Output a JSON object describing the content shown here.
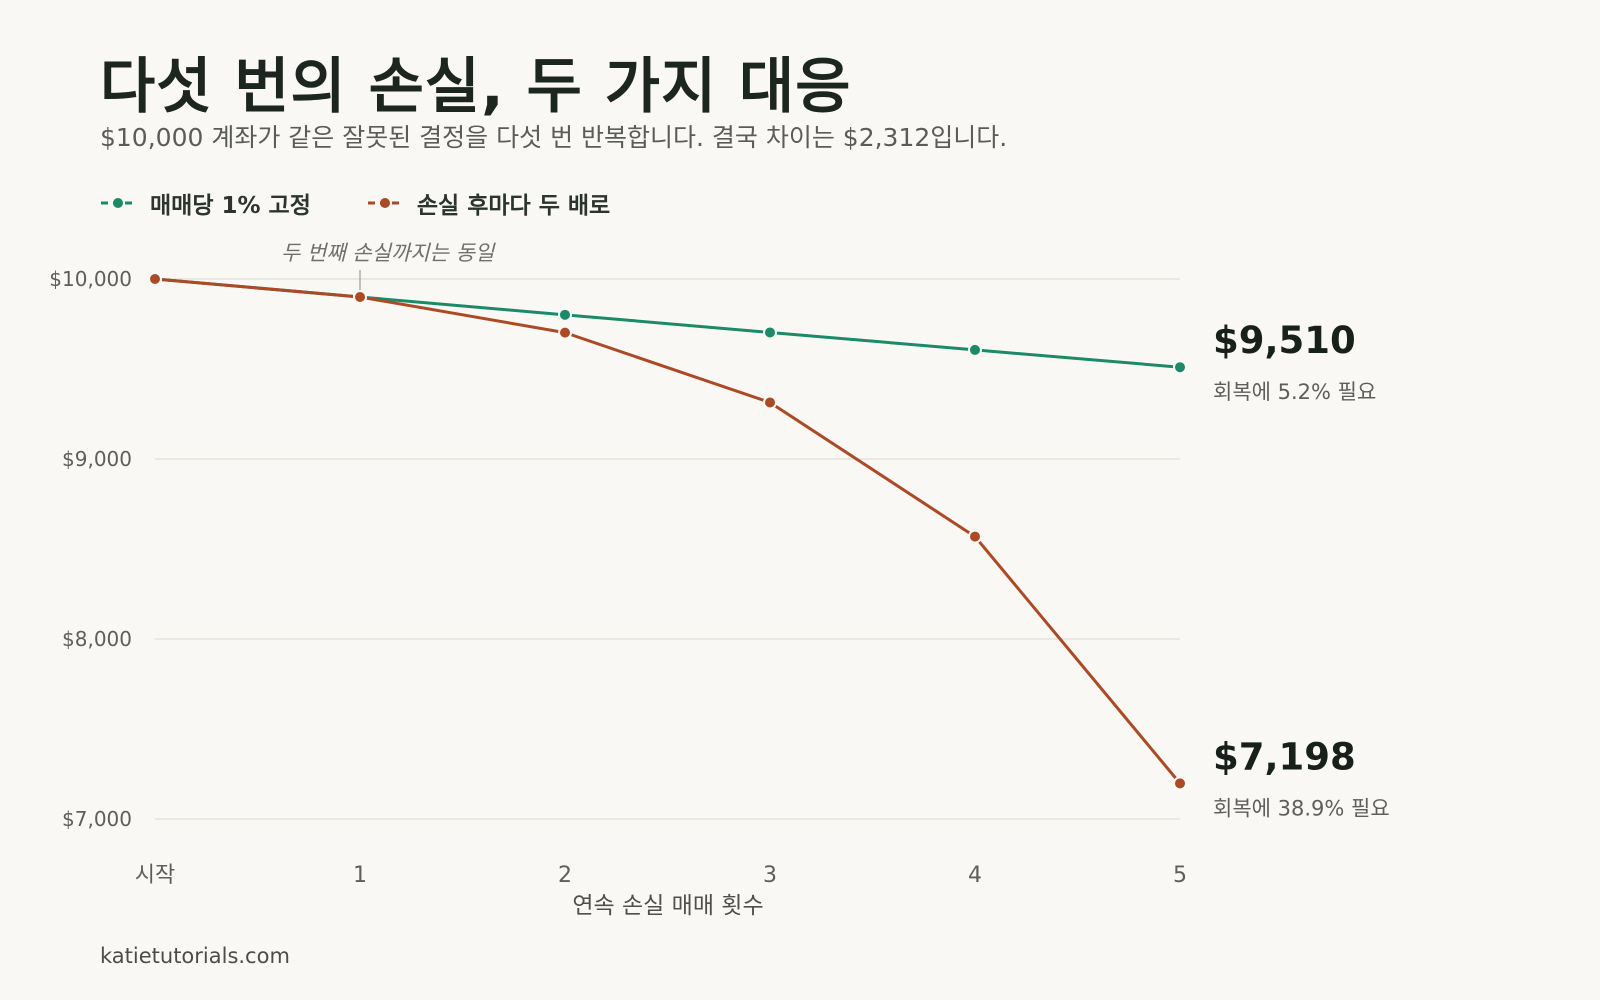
{
  "title": "다섯 번의 손실, 두 가지 대응",
  "subtitle": "$10,000 계좌가 같은 잘못된 결정을 다섯 번 반복합니다. 결국 차이는 $2,312입니다.",
  "footer": "katietutorials.com",
  "colors": {
    "fixed": "#1a8a68",
    "doubling": "#ab4a24",
    "grid": "#e4e2dc",
    "tick": "#5e5e5b",
    "end_value": "#17201b",
    "annotation": "#6f6f6c"
  },
  "chart_data": {
    "type": "line",
    "x": [
      "시작",
      "1",
      "2",
      "3",
      "4",
      "5"
    ],
    "xlabel": "연속 손실 매매 횟수",
    "ylabel": "",
    "ylim": [
      7000,
      10000
    ],
    "yticks": [
      10000,
      9000,
      8000,
      7000
    ],
    "ytick_labels": [
      "$10,000",
      "$9,000",
      "$8,000",
      "$7,000"
    ],
    "grid": "horizontal",
    "legend_position": "top-left",
    "series": [
      {
        "name": "매매당 1% 고정",
        "color_key": "fixed",
        "values": [
          10000,
          9900,
          9801,
          9703,
          9606,
          9510
        ],
        "end_value_label": "$9,510",
        "end_note": "회복에 5.2% 필요"
      },
      {
        "name": "손실 후마다 두 배로",
        "color_key": "doubling",
        "values": [
          10000,
          9900,
          9702,
          9314,
          8569,
          7198
        ],
        "end_value_label": "$7,198",
        "end_note": "회복에 38.9% 필요"
      }
    ],
    "annotation": {
      "text": "두 번째 손실까지는 동일",
      "x_index": 1
    }
  }
}
